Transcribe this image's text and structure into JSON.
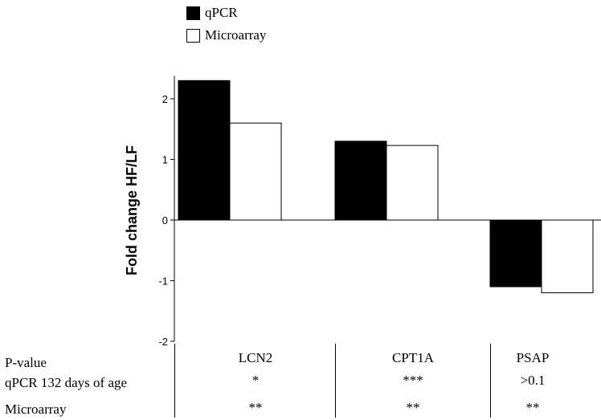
{
  "legend": {
    "qpcr_label": "qPCR",
    "microarray_label": "Microarray"
  },
  "colors": {
    "qpcr_fill": "#000000",
    "microarray_fill": "#ffffff",
    "stroke": "#000000"
  },
  "chart_data": {
    "type": "bar",
    "categories": [
      "LCN2",
      "CPT1A",
      "PSAP"
    ],
    "series": [
      {
        "name": "qPCR",
        "values": [
          2.3,
          1.3,
          -1.1
        ]
      },
      {
        "name": "Microarray",
        "values": [
          1.6,
          1.23,
          -1.2
        ]
      }
    ],
    "xlabel": "",
    "ylabel": "Fold change HF/LF",
    "ylim": [
      -2,
      2.3
    ],
    "yticks": [
      -2,
      -1,
      0,
      1,
      2
    ],
    "legend_position": "top-left"
  },
  "table": {
    "row_labels": [
      "P-value",
      "qPCR 132 days of age",
      "Microarray"
    ],
    "columns": [
      {
        "gene": "LCN2",
        "qpcr": "*",
        "microarray": "**"
      },
      {
        "gene": "CPT1A",
        "qpcr": "***",
        "microarray": "**"
      },
      {
        "gene": "PSAP",
        "qpcr": ">0.1",
        "microarray": "**"
      }
    ]
  }
}
